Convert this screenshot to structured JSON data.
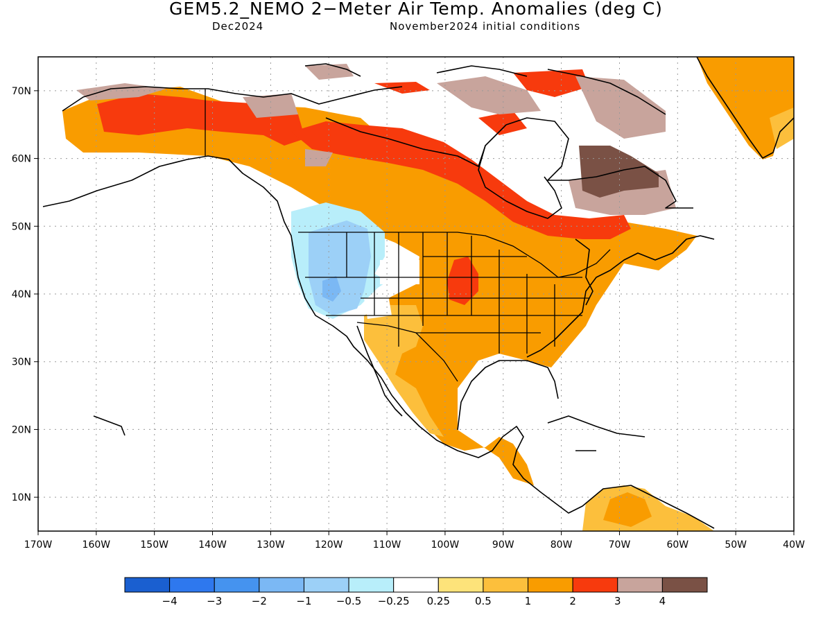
{
  "header": {
    "title": "GEM5.2_NEMO 2−Meter Air Temp. Anomalies (deg C)",
    "valid_month": "Dec2024",
    "initial_conditions": "November2024 initial conditions"
  },
  "map": {
    "projection": "lat-lon",
    "lon_range": [
      -170,
      -40
    ],
    "lat_range": [
      5,
      75
    ],
    "grid": true,
    "lon_tick_labels": [
      "170W",
      "160W",
      "150W",
      "140W",
      "130W",
      "120W",
      "110W",
      "100W",
      "90W",
      "80W",
      "70W",
      "60W",
      "50W",
      "40W"
    ],
    "lat_tick_labels": [
      "10N",
      "20N",
      "30N",
      "40N",
      "50N",
      "60N",
      "70N"
    ],
    "regions": [
      {
        "name": "Alaska / Yukon",
        "level": "3"
      },
      {
        "name": "Hudson Bay south shore to Gulf of St. Lawrence",
        "level": "3"
      },
      {
        "name": "Arctic Archipelago",
        "level": "4"
      },
      {
        "name": "Labrador interior",
        "level": ">4"
      },
      {
        "name": "Pacific Northwest / Great Basin",
        "level": "-1"
      },
      {
        "name": "Central and eastern US",
        "level": "2"
      },
      {
        "name": "Mexico",
        "level": "2"
      },
      {
        "name": "Northern South America",
        "level": "1"
      },
      {
        "name": "Greenland",
        "level": "2"
      }
    ]
  },
  "colorbar": {
    "labels": [
      "−4",
      "−3",
      "−2",
      "−1",
      "−0.5",
      "−0.25",
      "0.25",
      "0.5",
      "1",
      "2",
      "3",
      "4"
    ],
    "colors": [
      "#1a5fd0",
      "#2e78ee",
      "#4593ef",
      "#7bb8f4",
      "#9cd0f7",
      "#b8eefa",
      "#ffffff",
      "#fde37a",
      "#fcbf3c",
      "#f99c00",
      "#f73a0d",
      "#c8a49c",
      "#7a5145"
    ]
  }
}
